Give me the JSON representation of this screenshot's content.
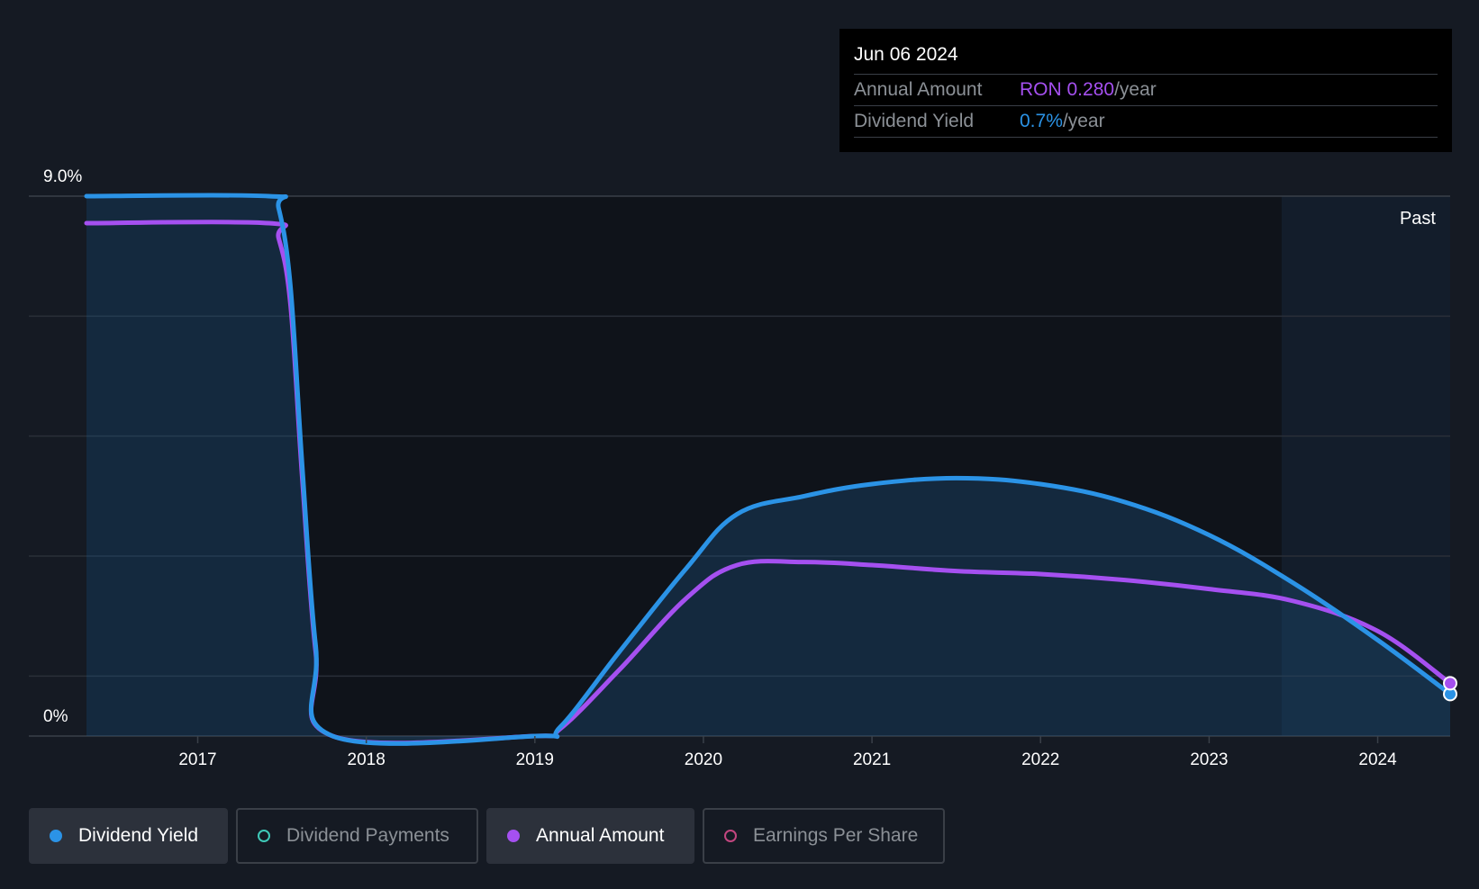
{
  "tooltip": {
    "date": "Jun 06 2024",
    "rows": [
      {
        "label": "Annual Amount",
        "value": "RON 0.280",
        "unit": "/year"
      },
      {
        "label": "Dividend Yield",
        "value": "0.7%",
        "unit": "/year"
      }
    ]
  },
  "past_label": "Past",
  "legend": [
    {
      "label": "Dividend Yield",
      "color": "#2b93e6",
      "active": true,
      "filled": true
    },
    {
      "label": "Dividend Payments",
      "color": "#3fc9b8",
      "active": false,
      "filled": false
    },
    {
      "label": "Annual Amount",
      "color": "#a550f0",
      "active": true,
      "filled": true
    },
    {
      "label": "Earnings Per Share",
      "color": "#c2467f",
      "active": false,
      "filled": false
    }
  ],
  "chart_data": {
    "type": "line",
    "y_tick_labels": [
      "9.0%",
      "0%"
    ],
    "ylim": [
      0,
      9.0
    ],
    "x_tick_labels": [
      "2017",
      "2018",
      "2019",
      "2020",
      "2021",
      "2022",
      "2023",
      "2024"
    ],
    "xlim": [
      2016.34,
      2024.43
    ],
    "past_region_start": 2023.43,
    "grid": true,
    "series": [
      {
        "name": "Dividend Yield",
        "color": "#2b93e6",
        "points": [
          [
            2016.34,
            9.0
          ],
          [
            2017.42,
            9.0
          ],
          [
            2017.48,
            8.8
          ],
          [
            2017.55,
            7.5
          ],
          [
            2017.62,
            4.5
          ],
          [
            2017.7,
            1.5
          ],
          [
            2017.8,
            0.0
          ],
          [
            2019.0,
            0.0
          ],
          [
            2019.15,
            0.15
          ],
          [
            2019.5,
            1.4
          ],
          [
            2019.9,
            2.8
          ],
          [
            2020.2,
            3.7
          ],
          [
            2020.6,
            4.0
          ],
          [
            2021.0,
            4.2
          ],
          [
            2021.5,
            4.3
          ],
          [
            2022.0,
            4.2
          ],
          [
            2022.5,
            3.9
          ],
          [
            2023.0,
            3.35
          ],
          [
            2023.5,
            2.55
          ],
          [
            2024.0,
            1.6
          ],
          [
            2024.43,
            0.7
          ]
        ]
      },
      {
        "name": "Annual Amount",
        "color": "#a550f0",
        "points": [
          [
            2016.34,
            8.55
          ],
          [
            2017.42,
            8.55
          ],
          [
            2017.48,
            8.3
          ],
          [
            2017.55,
            7.2
          ],
          [
            2017.62,
            4.3
          ],
          [
            2017.7,
            1.4
          ],
          [
            2017.8,
            0.0
          ],
          [
            2019.0,
            0.0
          ],
          [
            2019.15,
            0.12
          ],
          [
            2019.5,
            1.1
          ],
          [
            2019.9,
            2.3
          ],
          [
            2020.2,
            2.85
          ],
          [
            2020.6,
            2.9
          ],
          [
            2021.0,
            2.85
          ],
          [
            2021.5,
            2.75
          ],
          [
            2022.0,
            2.7
          ],
          [
            2022.5,
            2.6
          ],
          [
            2023.0,
            2.45
          ],
          [
            2023.5,
            2.25
          ],
          [
            2024.0,
            1.75
          ],
          [
            2024.43,
            0.88
          ]
        ]
      }
    ]
  }
}
